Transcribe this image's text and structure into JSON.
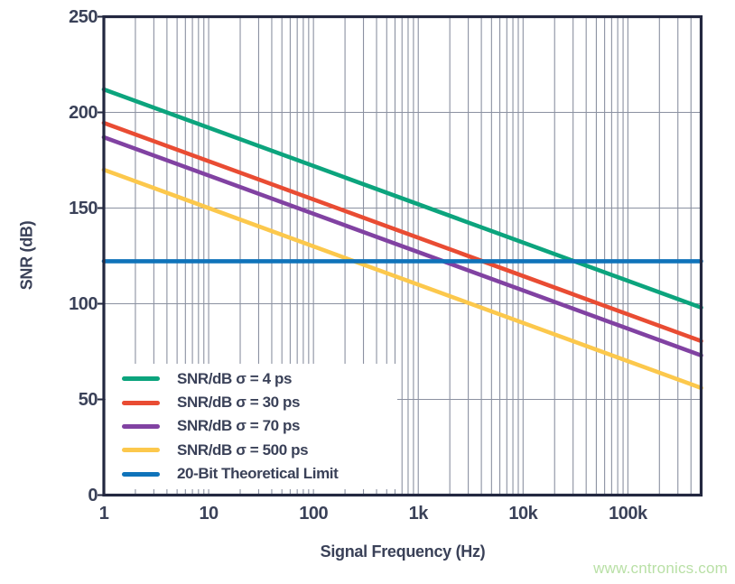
{
  "watermark": "www.cntronics.com",
  "colors": {
    "frame": "#232840",
    "gridline": "#8b91a1",
    "label_text": "#3a4158",
    "watermark_green": "#b9e0a6",
    "series_green": "#0ca47d",
    "series_red": "#e94c33",
    "series_purple": "#8142a2",
    "series_yellow": "#fcc84c",
    "series_blue": "#0f73ba"
  },
  "chart_data": {
    "type": "line",
    "title": "",
    "xlabel": "Signal Frequency (Hz)",
    "ylabel": "SNR (dB)",
    "x_scale": "log",
    "x_range": [
      1,
      500000
    ],
    "y_range": [
      0,
      250
    ],
    "grid": {
      "on": true,
      "y_lines": [
        50,
        100,
        150,
        200
      ],
      "x_minor": "all-log-decades"
    },
    "x_ticks": [
      {
        "value": 1,
        "label": "1"
      },
      {
        "value": 10,
        "label": "10"
      },
      {
        "value": 100,
        "label": "100"
      },
      {
        "value": 1000,
        "label": "1k"
      },
      {
        "value": 10000,
        "label": "10k"
      },
      {
        "value": 100000,
        "label": "100k"
      }
    ],
    "y_ticks": [
      {
        "value": 0,
        "label": "0"
      },
      {
        "value": 50,
        "label": "50"
      },
      {
        "value": 100,
        "label": "100"
      },
      {
        "value": 150,
        "label": "150"
      },
      {
        "value": 200,
        "label": "200"
      },
      {
        "value": 250,
        "label": "250"
      }
    ],
    "legend_position": "inside-bottom-left",
    "series": [
      {
        "name": "SNR/dB σ = 4 ps",
        "color": "#0ca47d",
        "points": [
          {
            "x": 1,
            "y": 212
          },
          {
            "x": 500000,
            "y": 98
          }
        ]
      },
      {
        "name": "SNR/dB σ = 30 ps",
        "color": "#e94c33",
        "points": [
          {
            "x": 1,
            "y": 194.5
          },
          {
            "x": 500000,
            "y": 80.5
          }
        ]
      },
      {
        "name": "SNR/dB σ = 70 ps",
        "color": "#8142a2",
        "points": [
          {
            "x": 1,
            "y": 187
          },
          {
            "x": 500000,
            "y": 73
          }
        ]
      },
      {
        "name": "SNR/dB σ = 500 ps",
        "color": "#fcc84c",
        "points": [
          {
            "x": 1,
            "y": 170
          },
          {
            "x": 500000,
            "y": 56
          }
        ]
      },
      {
        "name": "20-Bit Theoretical Limit",
        "color": "#0f73ba",
        "points": [
          {
            "x": 1,
            "y": 122.2
          },
          {
            "x": 500000,
            "y": 122.2
          }
        ]
      }
    ]
  }
}
